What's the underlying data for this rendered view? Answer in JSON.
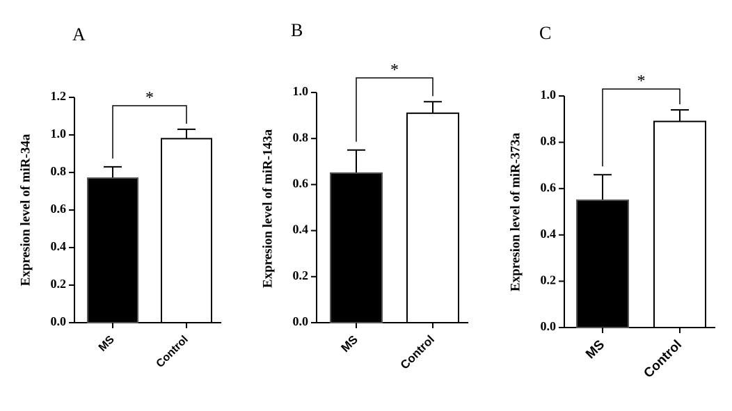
{
  "chart_data": [
    {
      "type": "bar",
      "panel": "A",
      "ylabel": "Expresion level of miR-34a",
      "categories": [
        "MS",
        "Control"
      ],
      "values": [
        0.77,
        0.98
      ],
      "errors": [
        0.06,
        0.05
      ],
      "bar_colors": [
        "#000000",
        "#ffffff"
      ],
      "ylim": [
        0,
        1.2
      ],
      "yticks": [
        "0.0",
        "0.2",
        "0.4",
        "0.6",
        "0.8",
        "1.0",
        "1.2"
      ],
      "significance": "*"
    },
    {
      "type": "bar",
      "panel": "B",
      "ylabel": "Expresion level of miR-143a",
      "categories": [
        "MS",
        "Control"
      ],
      "values": [
        0.65,
        0.91
      ],
      "errors": [
        0.1,
        0.05
      ],
      "bar_colors": [
        "#000000",
        "#ffffff"
      ],
      "ylim": [
        0,
        1.0
      ],
      "yticks": [
        "0.0",
        "0.2",
        "0.4",
        "0.6",
        "0.8",
        "1.0"
      ],
      "significance": "*"
    },
    {
      "type": "bar",
      "panel": "C",
      "ylabel": "Expresion level of miR-373a",
      "categories": [
        "MS",
        "Control"
      ],
      "values": [
        0.55,
        0.89
      ],
      "errors": [
        0.11,
        0.05
      ],
      "bar_colors": [
        "#000000",
        "#ffffff"
      ],
      "ylim": [
        0,
        1.0
      ],
      "yticks": [
        "0.0",
        "0.2",
        "0.4",
        "0.6",
        "0.8",
        "1.0"
      ],
      "significance": "*"
    }
  ]
}
